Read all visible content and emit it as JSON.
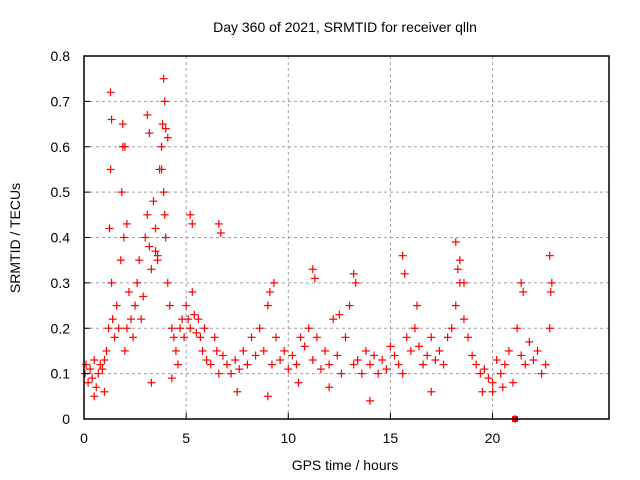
{
  "chart_data": {
    "type": "scatter",
    "title": "Day 360 of 2021, SRMTID for receiver qlln",
    "xlabel": "GPS time / hours",
    "ylabel": "SRMTID / TECUs",
    "xlim": [
      0,
      25.7
    ],
    "ylim": [
      0,
      0.8
    ],
    "xticks": [
      "0",
      "5",
      "10",
      "15",
      "20"
    ],
    "xtick_values": [
      0,
      5,
      10,
      15,
      20
    ],
    "yticks": [
      "0",
      "0.1",
      "0.2",
      "0.3",
      "0.4",
      "0.5",
      "0.6",
      "0.7",
      "0.8"
    ],
    "ytick_values": [
      0,
      0.1,
      0.2,
      0.3,
      0.4,
      0.5,
      0.6,
      0.7,
      0.8
    ],
    "grid": true,
    "marker": "+",
    "series_color": "#ff0000",
    "series": [
      {
        "name": "SRMTID",
        "x": [
          0.05,
          0.1,
          0.2,
          0.3,
          0.4,
          0.5,
          0.6,
          0.7,
          0.8,
          0.9,
          1.0,
          1.1,
          1.2,
          1.25,
          1.3,
          1.35,
          1.4,
          1.5,
          1.6,
          1.7,
          1.8,
          1.85,
          1.9,
          1.95,
          2.0,
          2.1,
          2.2,
          2.3,
          2.4,
          2.5,
          2.6,
          2.7,
          2.8,
          2.9,
          3.0,
          3.1,
          3.2,
          3.3,
          3.4,
          3.5,
          3.6,
          3.7,
          3.8,
          3.85,
          3.9,
          3.95,
          4.0,
          4.1,
          4.2,
          4.3,
          4.4,
          4.5,
          4.6,
          4.7,
          4.8,
          4.9,
          5.0,
          5.1,
          5.2,
          5.3,
          5.4,
          5.5,
          5.6,
          5.7,
          5.8,
          5.9,
          6.0,
          6.2,
          6.4,
          6.5,
          6.6,
          6.8,
          7.0,
          7.2,
          7.4,
          7.6,
          7.8,
          8.0,
          8.2,
          8.4,
          8.6,
          8.8,
          9.0,
          9.2,
          9.4,
          9.6,
          9.8,
          10.0,
          10.2,
          10.4,
          10.6,
          10.8,
          11.0,
          11.2,
          11.4,
          11.6,
          11.8,
          12.0,
          12.2,
          12.4,
          12.6,
          12.8,
          13.0,
          13.2,
          13.4,
          13.6,
          13.8,
          14.0,
          14.2,
          14.4,
          14.6,
          14.8,
          15.0,
          15.2,
          15.4,
          15.6,
          15.8,
          16.0,
          16.2,
          16.4,
          16.6,
          16.8,
          17.0,
          17.2,
          17.4,
          17.6,
          17.8,
          18.0,
          18.2,
          18.4,
          18.6,
          18.8,
          19.0,
          19.2,
          19.4,
          19.6,
          19.8,
          20.0,
          20.2,
          20.4,
          20.6,
          20.8,
          21.0,
          21.2,
          21.4,
          21.6,
          21.8,
          22.0,
          22.2,
          22.4,
          22.6,
          22.8,
          1.3,
          1.35,
          1.9,
          2.0,
          3.1,
          3.2,
          3.9,
          3.95,
          4.0,
          3.8,
          4.1,
          2.1,
          3.5,
          3.6,
          6.6,
          6.7,
          5.2,
          5.3,
          9.3,
          9.1,
          11.2,
          11.3,
          13.2,
          13.3,
          12.5,
          15.6,
          15.7,
          16.3,
          18.2,
          18.3,
          18.4,
          18.6,
          21.4,
          21.5,
          22.8,
          22.9,
          22.85,
          0.5,
          1.0,
          3.3,
          4.3,
          7.5,
          9.0,
          10.5,
          12.0,
          14.0,
          17.0,
          19.5,
          20.5,
          20.0,
          21.1
        ],
        "y": [
          0.1,
          0.12,
          0.08,
          0.11,
          0.09,
          0.13,
          0.07,
          0.1,
          0.12,
          0.11,
          0.13,
          0.15,
          0.2,
          0.42,
          0.55,
          0.3,
          0.22,
          0.18,
          0.25,
          0.2,
          0.35,
          0.5,
          0.6,
          0.4,
          0.15,
          0.2,
          0.28,
          0.22,
          0.18,
          0.25,
          0.3,
          0.35,
          0.22,
          0.27,
          0.4,
          0.45,
          0.38,
          0.33,
          0.48,
          0.42,
          0.35,
          0.55,
          0.6,
          0.65,
          0.5,
          0.45,
          0.4,
          0.3,
          0.25,
          0.2,
          0.18,
          0.15,
          0.12,
          0.2,
          0.22,
          0.18,
          0.25,
          0.22,
          0.2,
          0.28,
          0.23,
          0.19,
          0.22,
          0.18,
          0.15,
          0.2,
          0.13,
          0.12,
          0.18,
          0.15,
          0.1,
          0.14,
          0.12,
          0.1,
          0.13,
          0.11,
          0.15,
          0.12,
          0.18,
          0.14,
          0.2,
          0.15,
          0.25,
          0.12,
          0.18,
          0.13,
          0.15,
          0.11,
          0.14,
          0.12,
          0.18,
          0.16,
          0.2,
          0.13,
          0.18,
          0.11,
          0.15,
          0.12,
          0.22,
          0.14,
          0.1,
          0.18,
          0.25,
          0.12,
          0.13,
          0.1,
          0.15,
          0.12,
          0.14,
          0.1,
          0.13,
          0.11,
          0.16,
          0.14,
          0.12,
          0.1,
          0.18,
          0.15,
          0.2,
          0.16,
          0.12,
          0.14,
          0.18,
          0.13,
          0.15,
          0.12,
          0.18,
          0.2,
          0.25,
          0.3,
          0.22,
          0.18,
          0.14,
          0.12,
          0.1,
          0.11,
          0.09,
          0.08,
          0.13,
          0.1,
          0.12,
          0.15,
          0.08,
          0.2,
          0.14,
          0.12,
          0.17,
          0.13,
          0.15,
          0.1,
          0.12,
          0.2,
          0.72,
          0.66,
          0.65,
          0.6,
          0.67,
          0.63,
          0.75,
          0.7,
          0.64,
          0.55,
          0.62,
          0.43,
          0.37,
          0.36,
          0.43,
          0.41,
          0.45,
          0.43,
          0.3,
          0.28,
          0.33,
          0.31,
          0.32,
          0.3,
          0.23,
          0.36,
          0.32,
          0.25,
          0.39,
          0.33,
          0.35,
          0.3,
          0.3,
          0.28,
          0.36,
          0.3,
          0.28,
          0.05,
          0.06,
          0.08,
          0.09,
          0.06,
          0.05,
          0.08,
          0.07,
          0.04,
          0.06,
          0.06,
          0.07,
          0.06,
          0.0
        ]
      }
    ],
    "annotations": [
      {
        "type": "square-marker",
        "x": 21.1,
        "y": 0
      }
    ]
  }
}
